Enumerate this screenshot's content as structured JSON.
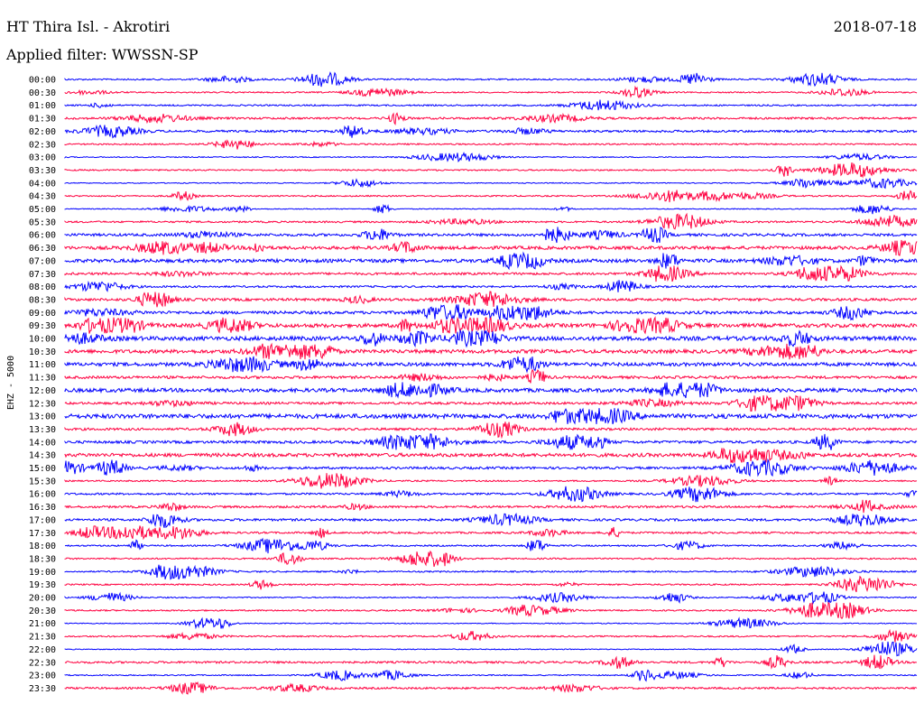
{
  "header": {
    "station": "HT Thira Isl. - Akrotiri",
    "date": "2018-07-18",
    "filter": "Applied filter: WWSSN-SP"
  },
  "chart_data": {
    "type": "line",
    "ylabel": "EHZ - 5000",
    "colors": [
      "#0000ff",
      "#ff0040"
    ],
    "time_labels": [
      "00:00",
      "00:30",
      "01:00",
      "01:30",
      "02:00",
      "02:30",
      "03:00",
      "03:30",
      "04:00",
      "04:30",
      "05:00",
      "05:30",
      "06:00",
      "06:30",
      "07:00",
      "07:30",
      "08:00",
      "08:30",
      "09:00",
      "09:30",
      "10:00",
      "10:30",
      "11:00",
      "11:30",
      "12:00",
      "12:30",
      "13:00",
      "13:30",
      "14:00",
      "14:30",
      "15:00",
      "15:30",
      "16:00",
      "16:30",
      "17:00",
      "17:30",
      "18:00",
      "18:30",
      "19:00",
      "19:30",
      "20:00",
      "20:30",
      "21:00",
      "21:30",
      "22:00",
      "22:30",
      "23:00",
      "23:30"
    ],
    "noise_level": [
      1.0,
      0.9,
      1.0,
      1.4,
      1.5,
      1.0,
      0.7,
      1.0,
      0.6,
      0.9,
      0.6,
      1.2,
      1.8,
      2.2,
      2.4,
      1.6,
      1.3,
      1.8,
      2.0,
      2.6,
      2.8,
      2.5,
      2.4,
      1.8,
      2.6,
      1.6,
      3.0,
      1.6,
      1.8,
      2.4,
      1.6,
      1.0,
      1.3,
      1.5,
      1.6,
      1.3,
      1.0,
      1.0,
      1.0,
      1.0,
      0.8,
      1.0,
      0.6,
      1.0,
      0.6,
      1.4,
      0.8,
      1.3
    ]
  }
}
